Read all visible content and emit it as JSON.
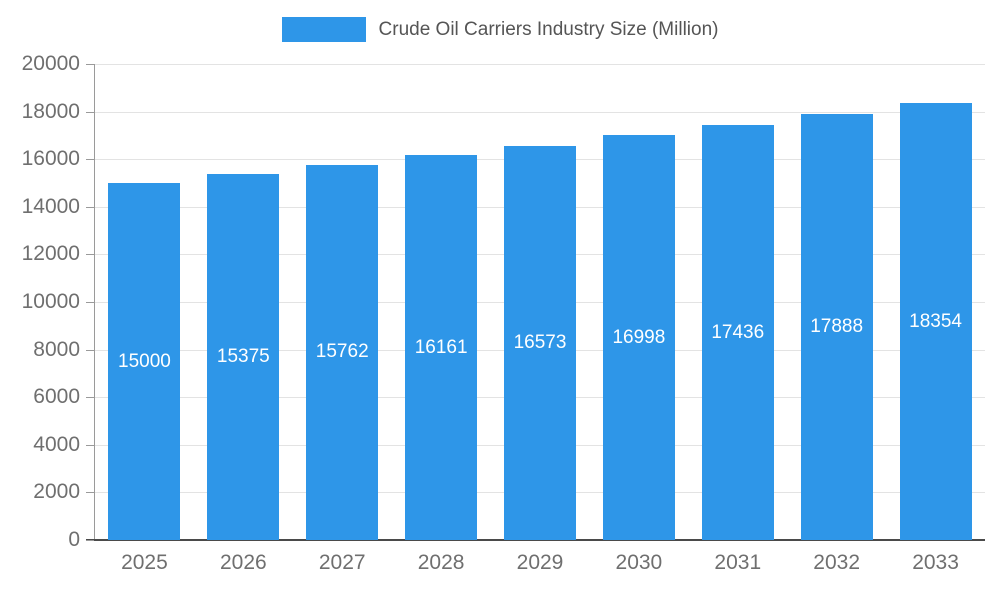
{
  "chart_data": {
    "type": "bar",
    "title": "Crude Oil Carriers Industry Size (Million)",
    "categories": [
      "2025",
      "2026",
      "2027",
      "2028",
      "2029",
      "2030",
      "2031",
      "2032",
      "2033"
    ],
    "values": [
      15000,
      15375,
      15762,
      16161,
      16573,
      16998,
      17436,
      17888,
      18354
    ],
    "xlabel": "",
    "ylabel": "",
    "ylim": [
      0,
      20000
    ],
    "yticks": [
      0,
      2000,
      4000,
      6000,
      8000,
      10000,
      12000,
      14000,
      16000,
      18000,
      20000
    ],
    "grid": true,
    "legend_position": "top",
    "bar_label_position": "inside-center",
    "colors": {
      "bar": "#2E96E8",
      "bar_label": "#ffffff",
      "axis_text": "#6f6f6f",
      "legend_text": "#555555",
      "gridline": "#e3e3e3"
    }
  }
}
